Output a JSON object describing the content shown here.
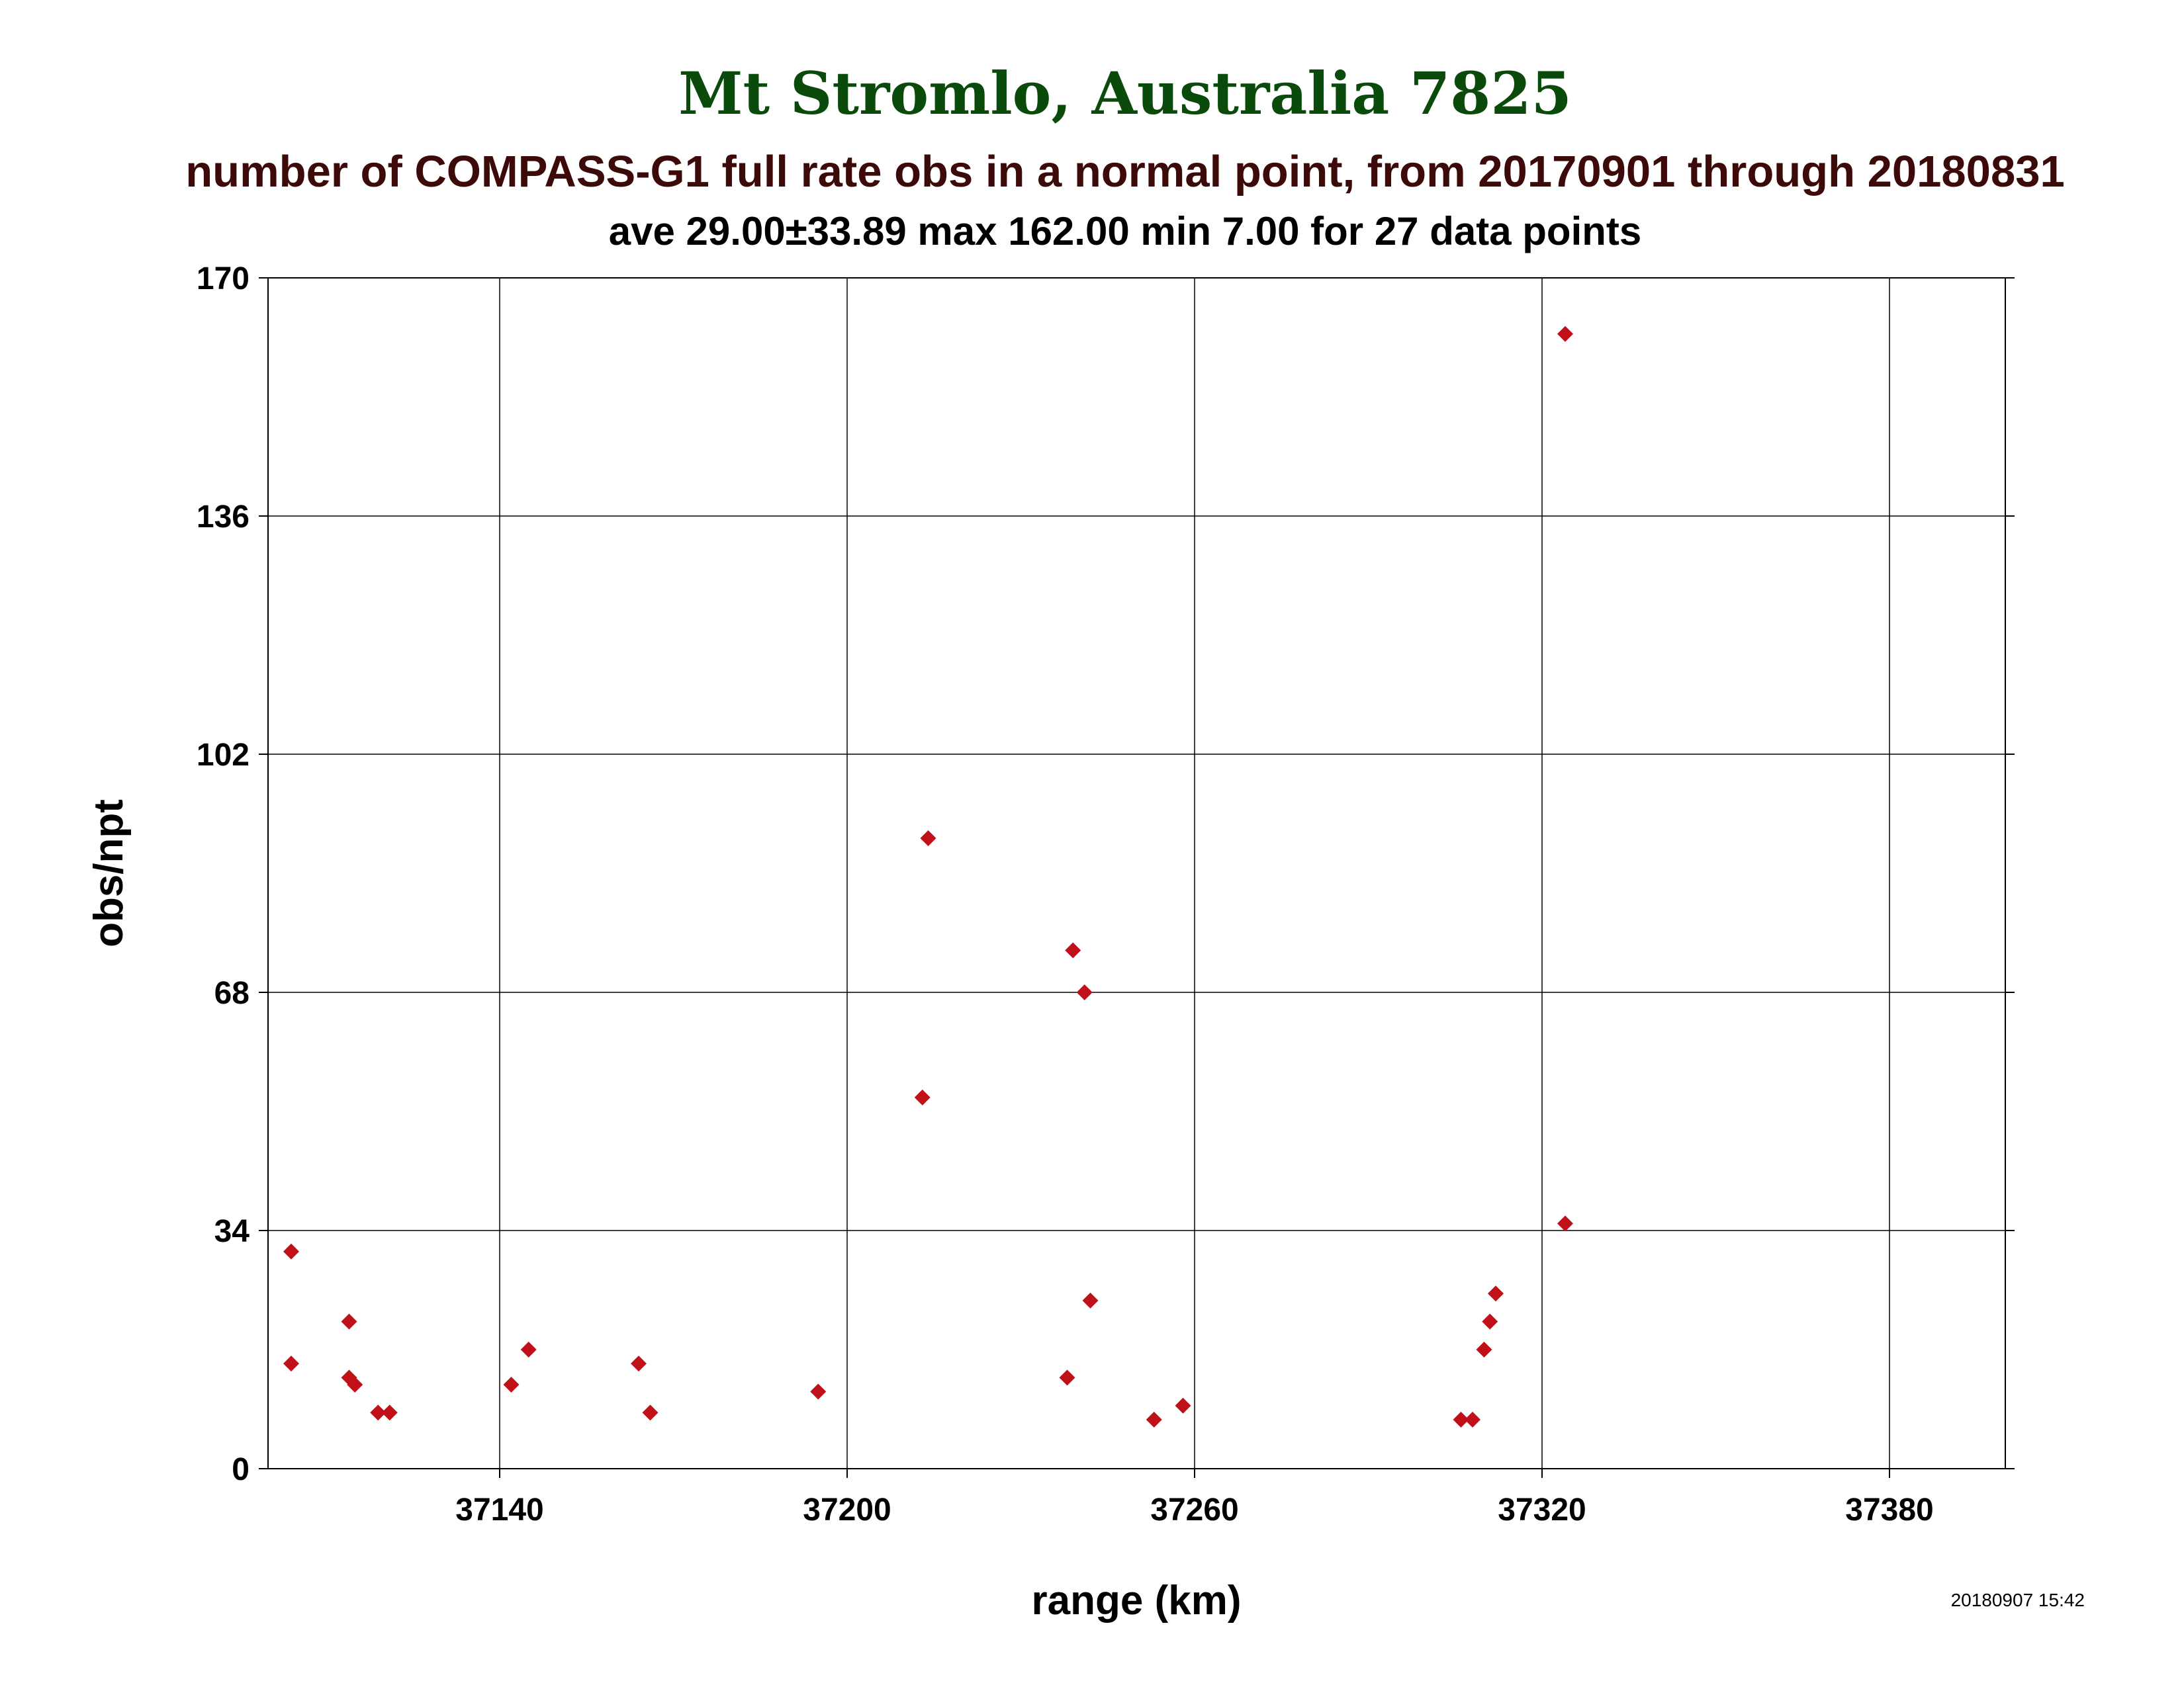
{
  "chart_data": {
    "type": "scatter",
    "title": "Mt Stromlo, Australia 7825",
    "subtitle": "number of COMPASS-G1 full rate obs in a normal point, from 20170901 through 20180831",
    "stats": "ave 29.00±33.89 max 162.00 min 7.00 for 27 data points",
    "xlabel": "range (km)",
    "ylabel": "obs/npt",
    "xlim": [
      37100,
      37400
    ],
    "ylim": [
      0,
      170
    ],
    "xticks": [
      "37140",
      "37200",
      "37260",
      "37320",
      "37380"
    ],
    "yticks": [
      "0",
      "34",
      "68",
      "102",
      "136",
      "170"
    ],
    "grid": true,
    "timestamp": "20180907 15:42",
    "colors": {
      "title": "#0a4a0a",
      "subtitle": "#3d0a0a",
      "marker": "#c0101a",
      "grid": "#000000"
    },
    "points": [
      {
        "x": 37104,
        "y": 31
      },
      {
        "x": 37104,
        "y": 15
      },
      {
        "x": 37114,
        "y": 21
      },
      {
        "x": 37114,
        "y": 13
      },
      {
        "x": 37115,
        "y": 12
      },
      {
        "x": 37119,
        "y": 8
      },
      {
        "x": 37121,
        "y": 8
      },
      {
        "x": 37142,
        "y": 12
      },
      {
        "x": 37145,
        "y": 17
      },
      {
        "x": 37164,
        "y": 15
      },
      {
        "x": 37166,
        "y": 8
      },
      {
        "x": 37195,
        "y": 11
      },
      {
        "x": 37214,
        "y": 90
      },
      {
        "x": 37213,
        "y": 53
      },
      {
        "x": 37239,
        "y": 74
      },
      {
        "x": 37241,
        "y": 68
      },
      {
        "x": 37242,
        "y": 24
      },
      {
        "x": 37238,
        "y": 13
      },
      {
        "x": 37253,
        "y": 7
      },
      {
        "x": 37258,
        "y": 9
      },
      {
        "x": 37306,
        "y": 7
      },
      {
        "x": 37308,
        "y": 7
      },
      {
        "x": 37310,
        "y": 17
      },
      {
        "x": 37311,
        "y": 21
      },
      {
        "x": 37312,
        "y": 25
      },
      {
        "x": 37324,
        "y": 162
      },
      {
        "x": 37324,
        "y": 35
      }
    ]
  }
}
